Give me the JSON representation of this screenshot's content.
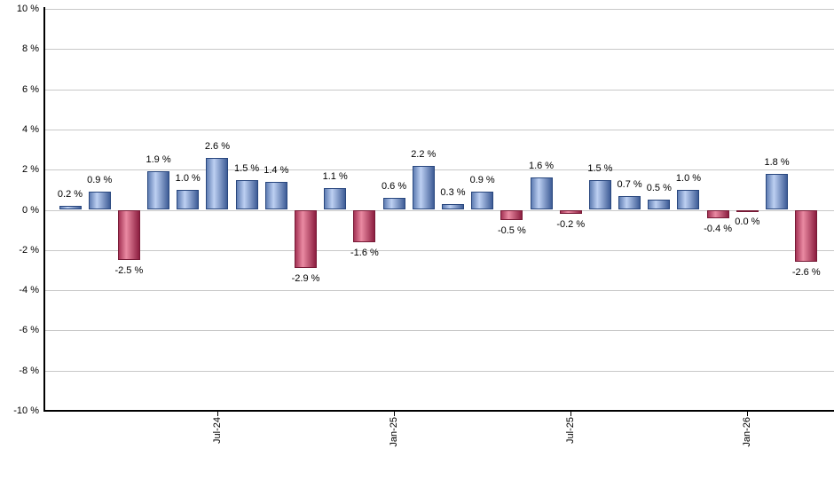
{
  "chart_data": {
    "type": "bar",
    "title": "",
    "xlabel": "",
    "ylabel": "",
    "ylim": [
      -10,
      10
    ],
    "grid": true,
    "legend_position": "none",
    "values": [
      0.2,
      0.9,
      -2.5,
      1.9,
      1.0,
      2.6,
      1.5,
      1.4,
      -2.9,
      1.1,
      -1.6,
      0.6,
      2.2,
      0.3,
      0.9,
      -0.5,
      1.6,
      -0.2,
      1.5,
      0.7,
      0.5,
      1.0,
      -0.4,
      0.0,
      1.8,
      -2.6
    ],
    "value_labels": [
      "0.2 %",
      "0.9 %",
      "-2.5 %",
      "1.9 %",
      "1.0 %",
      "2.6 %",
      "1.5 %",
      "1.4 %",
      "-2.9 %",
      "1.1 %",
      "-1.6 %",
      "0.6 %",
      "2.2 %",
      "0.3 %",
      "0.9 %",
      "-0.5 %",
      "1.6 %",
      "-0.2 %",
      "1.5 %",
      "0.7 %",
      "0.5 %",
      "1.0 %",
      "-0.4 %",
      "0.0 %",
      "1.8 %",
      "-2.6 %"
    ],
    "y_tick_values": [
      10,
      8,
      6,
      4,
      2,
      0,
      -2,
      -4,
      -6,
      -8,
      -10
    ],
    "y_tick_labels": [
      "10 %",
      "8 %",
      "6 %",
      "4 %",
      "2 %",
      "0 %",
      "-2 %",
      "-4 %",
      "-6 %",
      "-8 %",
      "-10 %"
    ],
    "x_ticks": [
      {
        "index": 5,
        "label": "Jul-24"
      },
      {
        "index": 11,
        "label": "Jan-25"
      },
      {
        "index": 17,
        "label": "Jul-25"
      },
      {
        "index": 23,
        "label": "Jan-26"
      }
    ],
    "colors": {
      "positive_gradient": [
        "#5f7db3",
        "#bdd0f2",
        "#3e5c96"
      ],
      "positive_border": "#29477e",
      "negative_gradient": [
        "#a43355",
        "#ea8aa2",
        "#8c1e40"
      ],
      "negative_border": "#771a36",
      "gridline": "#c8c8c8",
      "axis": "#000000",
      "text": "#000000",
      "background": "#ffffff"
    }
  }
}
